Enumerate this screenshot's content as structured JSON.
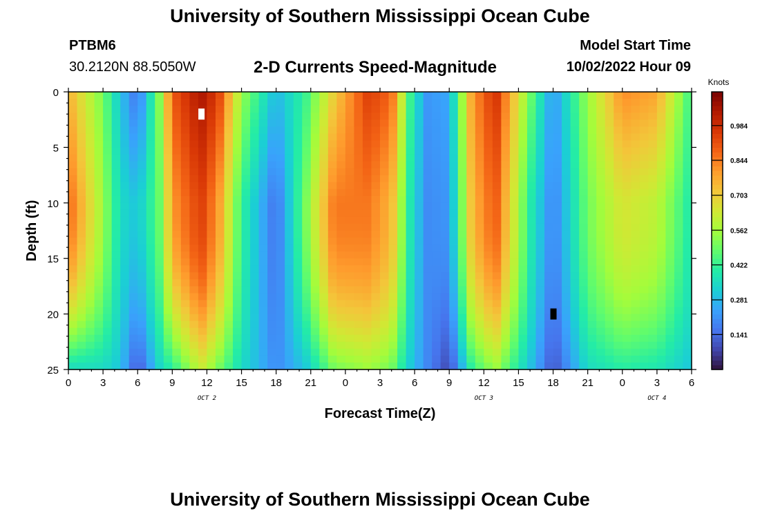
{
  "header": {
    "title_top": "University of Southern Mississippi Ocean Cube",
    "station_id": "PTBM6",
    "station_coords": "30.2120N  88.5050W",
    "subtitle": "2-D Currents Speed-Magnitude",
    "model_start_label": "Model Start Time",
    "model_start_value": "10/02/2022 Hour 09",
    "title_bottom": "University of Southern Mississippi Ocean Cube"
  },
  "chart_data": {
    "type": "heatmap",
    "xlabel": "Forecast Time(Z)",
    "ylabel": "Depth (ft)",
    "x_start": "2022-10-02 00Z",
    "x_hours_total": 54,
    "x_tick_labels": [
      "0",
      "3",
      "6",
      "9",
      "12",
      "15",
      "18",
      "21",
      "0",
      "3",
      "6",
      "9",
      "12",
      "15",
      "18",
      "21",
      "0",
      "3",
      "6"
    ],
    "date_labels": [
      {
        "label": "OCT 2",
        "hour": 12
      },
      {
        "label": "OCT 3",
        "hour": 36
      },
      {
        "label": "OCT 4",
        "hour": 51
      }
    ],
    "y_ticks": [
      0,
      5,
      10,
      15,
      20,
      25
    ],
    "ylim": [
      0,
      25
    ],
    "y_inverted": true,
    "colorbar": {
      "unit": "Knots",
      "ticks": [
        "0.141",
        "0.281",
        "0.422",
        "0.562",
        "0.703",
        "0.844",
        "0.984"
      ],
      "range": [
        0.0,
        1.12
      ],
      "colors": [
        "#30123b",
        "#4145ab",
        "#4675ed",
        "#39a2fc",
        "#1bcfd4",
        "#24eca6",
        "#61fc6c",
        "#a4fc3b",
        "#d1e834",
        "#f3c63a",
        "#fe9b2d",
        "#f36315",
        "#d93806",
        "#b11901",
        "#7a0402"
      ]
    },
    "speed_profiles": [
      {
        "hour": 0,
        "surface": 0.76,
        "mid": 0.88,
        "bottom": 0.35
      },
      {
        "hour": 3,
        "surface": 0.5,
        "mid": 0.55,
        "bottom": 0.35
      },
      {
        "hour": 4.5,
        "surface": 0.3,
        "mid": 0.35,
        "bottom": 0.3
      },
      {
        "hour": 6,
        "surface": 0.15,
        "mid": 0.3,
        "bottom": 0.1
      },
      {
        "hour": 8,
        "surface": 0.55,
        "mid": 0.5,
        "bottom": 0.35
      },
      {
        "hour": 9,
        "surface": 0.9,
        "mid": 0.8,
        "bottom": 0.4
      },
      {
        "hour": 11.5,
        "surface": 1.05,
        "mid": 0.95,
        "bottom": 0.62
      },
      {
        "hour": 13,
        "surface": 0.95,
        "mid": 0.8,
        "bottom": 0.5
      },
      {
        "hour": 15,
        "surface": 0.55,
        "mid": 0.42,
        "bottom": 0.35
      },
      {
        "hour": 18,
        "surface": 0.28,
        "mid": 0.15,
        "bottom": 0.2
      },
      {
        "hour": 20.5,
        "surface": 0.42,
        "mid": 0.5,
        "bottom": 0.3
      },
      {
        "hour": 23,
        "surface": 0.7,
        "mid": 0.85,
        "bottom": 0.5
      },
      {
        "hour": 26,
        "surface": 0.95,
        "mid": 0.85,
        "bottom": 0.55
      },
      {
        "hour": 28,
        "surface": 0.88,
        "mid": 0.75,
        "bottom": 0.5
      },
      {
        "hour": 29.5,
        "surface": 0.45,
        "mid": 0.4,
        "bottom": 0.32
      },
      {
        "hour": 31,
        "surface": 0.22,
        "mid": 0.2,
        "bottom": 0.2
      },
      {
        "hour": 33,
        "surface": 0.25,
        "mid": 0.22,
        "bottom": 0.08
      },
      {
        "hour": 35,
        "surface": 0.8,
        "mid": 0.75,
        "bottom": 0.42
      },
      {
        "hour": 37,
        "surface": 0.98,
        "mid": 0.9,
        "bottom": 0.55
      },
      {
        "hour": 40,
        "surface": 0.5,
        "mid": 0.4,
        "bottom": 0.3
      },
      {
        "hour": 42,
        "surface": 0.22,
        "mid": 0.18,
        "bottom": 0.1
      },
      {
        "hour": 45,
        "surface": 0.55,
        "mid": 0.5,
        "bottom": 0.35
      },
      {
        "hour": 48,
        "surface": 0.82,
        "mid": 0.65,
        "bottom": 0.4
      },
      {
        "hour": 51,
        "surface": 0.78,
        "mid": 0.6,
        "bottom": 0.38
      },
      {
        "hour": 54,
        "surface": 0.42,
        "mid": 0.38,
        "bottom": 0.3
      }
    ],
    "markers": [
      {
        "hour": 11.5,
        "depth": 2,
        "color": "#ffffff"
      },
      {
        "hour": 42,
        "depth": 20,
        "color": "#000000"
      }
    ]
  }
}
